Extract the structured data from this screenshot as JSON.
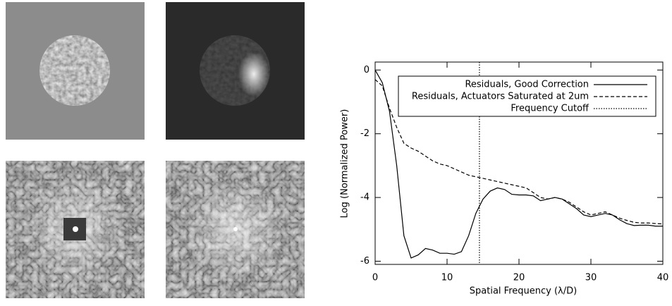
{
  "chart_data": {
    "type": "line",
    "xlabel": "Spatial Frequency (λ/D)",
    "ylabel": "Log (Normalized Power)",
    "xlim": [
      0,
      40
    ],
    "ylim": [
      -6.1,
      0.25
    ],
    "xticks": [
      0,
      10,
      20,
      30,
      40
    ],
    "yticks": [
      0,
      -2,
      -4,
      -6
    ],
    "legend": "top-right",
    "series": [
      {
        "name": "Residuals, Good Correction",
        "color": "#000000",
        "dash": "solid",
        "x": [
          0,
          1,
          2,
          3,
          4,
          5,
          6,
          7,
          8,
          9,
          10,
          11,
          12,
          13,
          14,
          15,
          16,
          17,
          18,
          19,
          20,
          21,
          22,
          23,
          24,
          25,
          26,
          27,
          28,
          29,
          30,
          31,
          32,
          33,
          34,
          35,
          36,
          37,
          38,
          39,
          40
        ],
        "values": [
          0,
          -0.4,
          -1.3,
          -3.0,
          -5.2,
          -5.9,
          -5.8,
          -5.6,
          -5.65,
          -5.75,
          -5.75,
          -5.78,
          -5.7,
          -5.2,
          -4.5,
          -4.05,
          -3.8,
          -3.7,
          -3.75,
          -3.9,
          -3.92,
          -3.92,
          -3.95,
          -4.1,
          -4.05,
          -4.0,
          -4.05,
          -4.2,
          -4.35,
          -4.55,
          -4.6,
          -4.55,
          -4.5,
          -4.55,
          -4.7,
          -4.82,
          -4.88,
          -4.87,
          -4.87,
          -4.9,
          -4.9
        ]
      },
      {
        "name": "Residuals, Actuators Saturated at 2um",
        "color": "#000000",
        "dash": "dashed",
        "x": [
          0,
          1,
          2,
          3,
          4,
          5,
          6,
          7,
          8,
          9,
          10,
          11,
          12,
          13,
          14,
          15,
          16,
          17,
          18,
          19,
          20,
          21,
          22,
          23,
          24,
          25,
          26,
          27,
          28,
          29,
          30,
          31,
          32,
          33,
          34,
          35,
          36,
          37,
          38,
          39,
          40
        ],
        "values": [
          -0.3,
          -0.5,
          -1.2,
          -1.8,
          -2.3,
          -2.45,
          -2.55,
          -2.7,
          -2.85,
          -2.95,
          -3.0,
          -3.1,
          -3.2,
          -3.3,
          -3.35,
          -3.4,
          -3.45,
          -3.5,
          -3.55,
          -3.6,
          -3.65,
          -3.7,
          -3.85,
          -4.0,
          -4.05,
          -4.0,
          -4.05,
          -4.15,
          -4.3,
          -4.45,
          -4.55,
          -4.5,
          -4.45,
          -4.55,
          -4.65,
          -4.72,
          -4.78,
          -4.8,
          -4.8,
          -4.82,
          -4.83
        ]
      },
      {
        "name": "Frequency Cutoff",
        "color": "#000000",
        "dash": "dotted",
        "x": [
          14.5,
          14.5
        ],
        "values": [
          0.25,
          -6.1
        ]
      }
    ]
  }
}
